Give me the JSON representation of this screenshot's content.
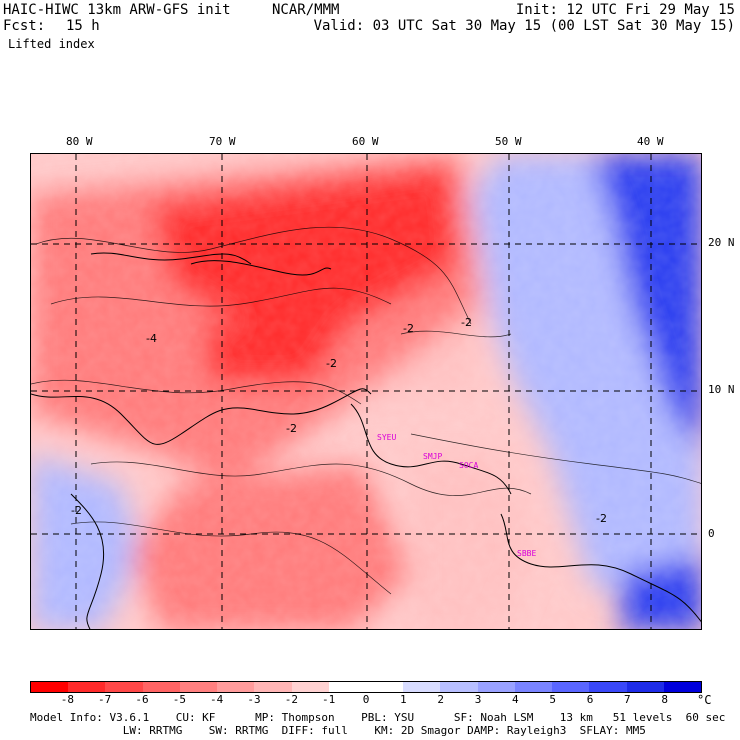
{
  "header": {
    "model_title": "HAIC-HIWC 13km ARW-GFS init",
    "org": "NCAR/MMM",
    "init": "Init: 12 UTC Fri 29 May 15",
    "fcst_label": "Fcst:",
    "fcst_value": "15 h",
    "valid": "Valid: 03 UTC Sat 30 May 15 (00 LST Sat 30 May 15)",
    "field": "Lifted index"
  },
  "map": {
    "lon_labels": [
      "80 W",
      "70 W",
      "60 W",
      "50 W",
      "40 W"
    ],
    "lat_labels": [
      "20 N",
      "10 N",
      "0"
    ],
    "contour_labels": [
      "-2",
      "-2",
      "-4",
      "-2",
      "-2",
      "-2",
      "-2"
    ],
    "stations": [
      "SYEU",
      "SMJP",
      "SOCA",
      "SBBE"
    ],
    "colors": {
      "very_negative": "#ff2a2a",
      "negative": "#ff7a7a",
      "weak_negative": "#ffc0c0",
      "neutral": "#ffffff",
      "positive": "#b0b8ff",
      "very_positive": "#2a3cf0"
    }
  },
  "colorbar": {
    "ticks": [
      "-8",
      "-7",
      "-6",
      "-5",
      "-4",
      "-3",
      "-2",
      "-1",
      "0",
      "1",
      "2",
      "3",
      "4",
      "5",
      "6",
      "7",
      "8"
    ],
    "unit": "°C",
    "swatches": [
      "#ff0000",
      "#ff2a2a",
      "#ff4848",
      "#ff6464",
      "#ff8080",
      "#ff9c9c",
      "#ffb6b6",
      "#ffd2d2",
      "#ffffff",
      "#ffffff",
      "#d8dcff",
      "#b8bfff",
      "#9aa2ff",
      "#7a84ff",
      "#5a66ff",
      "#3a48f8",
      "#1e2ce8",
      "#0000dc"
    ]
  },
  "footer": {
    "line1": "Model Info: V3.6.1    CU: KF      MP: Thompson    PBL: YSU      SF: Noah LSM    13 km   51 levels  60 sec",
    "line2": "              LW: RRTMG    SW: RRTMG  DIFF: full    KM: 2D Smagor DAMP: Rayleigh3  SFLAY: MM5"
  }
}
